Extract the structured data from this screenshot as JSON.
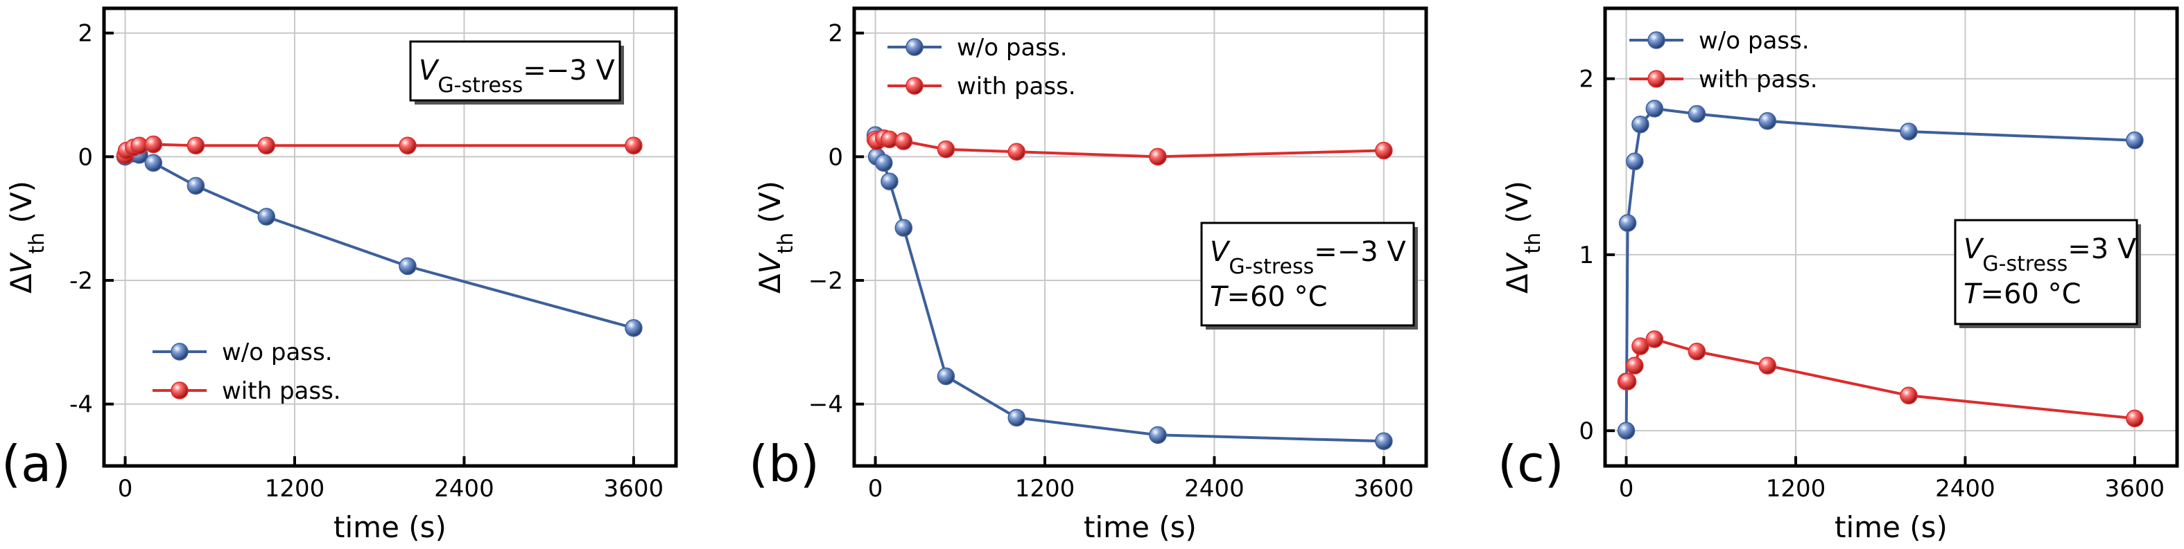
{
  "panels": [
    {
      "panel_label": "(a)",
      "annotation": {
        "var": "V",
        "sub": "G-stress",
        "eq": "=−3 V",
        "temp_var": null,
        "temp_eq": null
      },
      "legend": {
        "wo": "w/o pass.",
        "with": "with pass.",
        "position": "bottom-left"
      }
    },
    {
      "panel_label": "(b)",
      "annotation": {
        "var": "V",
        "sub": "G-stress",
        "eq": "=−3 V",
        "temp_var": "T",
        "temp_eq": "=60 °C"
      },
      "legend": {
        "wo": "w/o pass.",
        "with": "with pass.",
        "position": "top-left"
      }
    },
    {
      "panel_label": "(c)",
      "annotation": {
        "var": "V",
        "sub": "G-stress",
        "eq": "=3 V",
        "temp_var": "T",
        "temp_eq": "=60 °C"
      },
      "legend": {
        "wo": "w/o pass.",
        "with": "with pass.",
        "position": "top-left"
      }
    }
  ],
  "colors": {
    "wo": "#3d5f9b",
    "with": "#dd2c2c",
    "grid": "#c8c8c8",
    "axis": "#000000"
  },
  "chart_data": [
    {
      "type": "line",
      "title": "(a)",
      "xlabel": "time (s)",
      "ylabel_symbol": "ΔV",
      "ylabel_sub": "th",
      "ylabel_unit": "(V)",
      "xlim": [
        -150,
        3900
      ],
      "ylim": [
        -5,
        2.4
      ],
      "xticks": [
        0,
        1200,
        2400,
        3600
      ],
      "yticks": [
        -4,
        -2,
        0,
        2
      ],
      "yticklabels": [
        "-4",
        "-2",
        "0",
        "2"
      ],
      "grid": true,
      "series": [
        {
          "name": "w/o pass.",
          "x": [
            0,
            10,
            60,
            100,
            200,
            500,
            1000,
            2000,
            3600
          ],
          "y": [
            0,
            0.02,
            0.05,
            0.03,
            -0.1,
            -0.47,
            -0.97,
            -1.77,
            -2.77
          ]
        },
        {
          "name": "with pass.",
          "x": [
            0,
            10,
            60,
            100,
            200,
            500,
            1000,
            2000,
            3600
          ],
          "y": [
            0.02,
            0.1,
            0.15,
            0.18,
            0.2,
            0.18,
            0.18,
            0.18,
            0.18
          ]
        }
      ]
    },
    {
      "type": "line",
      "title": "(b)",
      "xlabel": "time (s)",
      "ylabel_symbol": "ΔV",
      "ylabel_sub": "th",
      "ylabel_unit": "(V)",
      "xlim": [
        -150,
        3900
      ],
      "ylim": [
        -5,
        2.4
      ],
      "xticks": [
        0,
        1200,
        2400,
        3600
      ],
      "yticks": [
        -4,
        -2,
        0,
        2
      ],
      "yticklabels": [
        "−4",
        "−2",
        "0",
        "2"
      ],
      "grid": true,
      "series": [
        {
          "name": "w/o pass.",
          "x": [
            0,
            10,
            60,
            100,
            200,
            500,
            1000,
            2000,
            3600
          ],
          "y": [
            0.35,
            0,
            -0.1,
            -0.4,
            -1.15,
            -3.55,
            -4.22,
            -4.5,
            -4.6
          ]
        },
        {
          "name": "with pass.",
          "x": [
            0,
            10,
            60,
            100,
            200,
            500,
            1000,
            2000,
            3600
          ],
          "y": [
            0.28,
            0.25,
            0.3,
            0.28,
            0.25,
            0.12,
            0.08,
            0.0,
            0.1
          ]
        }
      ]
    },
    {
      "type": "line",
      "title": "(c)",
      "xlabel": "time (s)",
      "ylabel_symbol": "ΔV",
      "ylabel_sub": "th",
      "ylabel_unit": "(V)",
      "xlim": [
        -150,
        3900
      ],
      "ylim": [
        -0.2,
        2.4
      ],
      "xticks": [
        0,
        1200,
        2400,
        3600
      ],
      "yticks": [
        0,
        1,
        2
      ],
      "yticklabels": [
        "0",
        "1",
        "2"
      ],
      "grid": true,
      "series": [
        {
          "name": "w/o pass.",
          "x": [
            0,
            10,
            60,
            100,
            200,
            500,
            1000,
            2000,
            3600
          ],
          "y": [
            0,
            1.18,
            1.53,
            1.74,
            1.83,
            1.8,
            1.76,
            1.7,
            1.65
          ]
        },
        {
          "name": "with pass.",
          "x": [
            0,
            10,
            60,
            100,
            200,
            500,
            1000,
            2000,
            3600
          ],
          "y": [
            0.28,
            0.28,
            0.37,
            0.48,
            0.52,
            0.45,
            0.37,
            0.2,
            0.07
          ]
        }
      ]
    }
  ]
}
